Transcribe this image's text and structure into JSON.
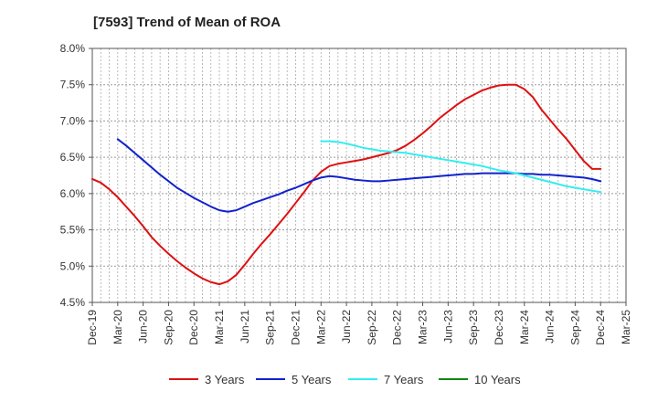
{
  "chart_data": {
    "type": "line",
    "title": "[7593]  Trend of Mean of ROA",
    "xlabel": "",
    "ylabel": "",
    "ylim": [
      4.5,
      8.0
    ],
    "y_ticks": [
      4.5,
      5.0,
      5.5,
      6.0,
      6.5,
      7.0,
      7.5,
      8.0
    ],
    "y_tick_labels": [
      "4.5%",
      "5.0%",
      "5.5%",
      "6.0%",
      "6.5%",
      "7.0%",
      "7.5%",
      "8.0%"
    ],
    "x_tick_labels": [
      "Dec-19",
      "Mar-20",
      "Jun-20",
      "Sep-20",
      "Dec-20",
      "Mar-21",
      "Jun-21",
      "Sep-21",
      "Dec-21",
      "Mar-22",
      "Jun-22",
      "Sep-22",
      "Dec-22",
      "Mar-23",
      "Jun-23",
      "Sep-23",
      "Dec-23",
      "Mar-24",
      "Jun-24",
      "Sep-24",
      "Dec-24",
      "Mar-25"
    ],
    "x_period_months": 3,
    "grid": true,
    "legend_position": "bottom",
    "series": [
      {
        "name": "3 Years",
        "color": "#dd1111",
        "x": [
          0,
          1,
          2,
          3,
          4,
          5,
          6,
          7,
          8,
          9,
          10,
          11,
          12,
          13,
          14,
          15,
          16,
          17,
          18,
          19,
          20,
          21,
          22,
          23,
          24,
          25,
          26,
          27,
          28,
          29,
          30,
          31,
          32,
          33,
          34,
          35,
          36,
          37,
          38,
          39,
          40,
          41,
          42,
          43,
          44,
          45,
          46,
          47,
          48,
          49,
          50,
          51,
          52,
          53,
          54,
          55,
          56,
          57,
          58,
          59,
          60
        ],
        "values": [
          6.2,
          6.15,
          6.06,
          5.95,
          5.82,
          5.69,
          5.55,
          5.4,
          5.28,
          5.17,
          5.07,
          4.98,
          4.9,
          4.83,
          4.78,
          4.75,
          4.79,
          4.88,
          5.02,
          5.17,
          5.31,
          5.44,
          5.58,
          5.72,
          5.87,
          6.02,
          6.18,
          6.3,
          6.38,
          6.41,
          6.43,
          6.45,
          6.47,
          6.5,
          6.53,
          6.56,
          6.6,
          6.66,
          6.74,
          6.83,
          6.93,
          7.04,
          7.13,
          7.22,
          7.3,
          7.36,
          7.42,
          7.46,
          7.49,
          7.5,
          7.5,
          7.44,
          7.33,
          7.16,
          7.02,
          6.88,
          6.75,
          6.6,
          6.45,
          6.34,
          6.34
        ]
      },
      {
        "name": "5 Years",
        "color": "#1122cc",
        "x": [
          3,
          4,
          5,
          6,
          7,
          8,
          9,
          10,
          11,
          12,
          13,
          14,
          15,
          16,
          17,
          18,
          19,
          20,
          21,
          22,
          23,
          24,
          25,
          26,
          27,
          28,
          29,
          30,
          31,
          32,
          33,
          34,
          35,
          36,
          37,
          38,
          39,
          40,
          41,
          42,
          43,
          44,
          45,
          46,
          47,
          48,
          49,
          50,
          51,
          52,
          53,
          54,
          55,
          56,
          57,
          58,
          59,
          60
        ],
        "values": [
          6.75,
          6.66,
          6.56,
          6.46,
          6.36,
          6.26,
          6.17,
          6.08,
          6.01,
          5.94,
          5.88,
          5.82,
          5.77,
          5.75,
          5.77,
          5.82,
          5.87,
          5.91,
          5.95,
          5.99,
          6.04,
          6.08,
          6.13,
          6.18,
          6.22,
          6.24,
          6.23,
          6.21,
          6.19,
          6.18,
          6.17,
          6.17,
          6.18,
          6.19,
          6.2,
          6.21,
          6.22,
          6.23,
          6.24,
          6.25,
          6.26,
          6.27,
          6.27,
          6.28,
          6.28,
          6.28,
          6.28,
          6.28,
          6.27,
          6.27,
          6.26,
          6.26,
          6.25,
          6.24,
          6.23,
          6.22,
          6.2,
          6.17
        ]
      },
      {
        "name": "7 Years",
        "color": "#33eeee",
        "x": [
          27,
          28,
          29,
          30,
          31,
          32,
          33,
          34,
          35,
          36,
          37,
          38,
          39,
          40,
          41,
          42,
          43,
          44,
          45,
          46,
          47,
          48,
          49,
          50,
          51,
          52,
          53,
          54,
          55,
          56,
          57,
          58,
          59,
          60
        ],
        "values": [
          6.72,
          6.72,
          6.71,
          6.69,
          6.66,
          6.63,
          6.61,
          6.59,
          6.58,
          6.57,
          6.56,
          6.54,
          6.52,
          6.5,
          6.48,
          6.46,
          6.44,
          6.42,
          6.4,
          6.38,
          6.35,
          6.32,
          6.3,
          6.28,
          6.25,
          6.22,
          6.19,
          6.16,
          6.13,
          6.1,
          6.08,
          6.06,
          6.04,
          6.02
        ]
      },
      {
        "name": "10 Years",
        "color": "#118811",
        "x": [],
        "values": []
      }
    ]
  }
}
